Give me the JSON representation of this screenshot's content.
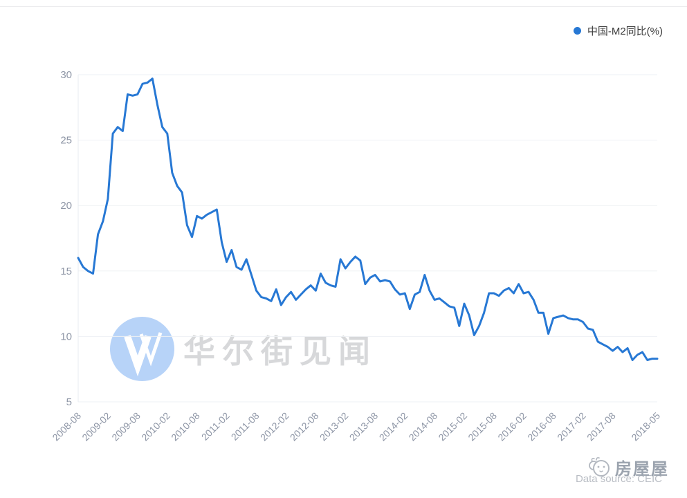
{
  "legend": {
    "label": "中国-M2同比(%)"
  },
  "watermark": {
    "logo_letter": "W",
    "text": "华尔街见闻"
  },
  "footer": {
    "data_source": "Data source: CEIC",
    "brand": "房屋屋"
  },
  "chart_data": {
    "type": "line",
    "title": "",
    "series_name": "中国-M2同比(%)",
    "legend_position": "top-right",
    "grid": true,
    "ylim": [
      5,
      30
    ],
    "y_ticks": [
      30,
      25,
      20,
      15,
      10,
      5
    ],
    "x_tick_labels": [
      "2008-08",
      "2009-02",
      "2009-08",
      "2010-02",
      "2010-08",
      "2011-02",
      "2011-08",
      "2012-02",
      "2012-08",
      "2013-02",
      "2013-08",
      "2014-02",
      "2014-08",
      "2015-02",
      "2015-08",
      "2016-02",
      "2016-08",
      "2017-02",
      "2017-08",
      "2018-05"
    ],
    "x": [
      "2008-08",
      "2008-09",
      "2008-10",
      "2008-11",
      "2008-12",
      "2009-01",
      "2009-02",
      "2009-03",
      "2009-04",
      "2009-05",
      "2009-06",
      "2009-07",
      "2009-08",
      "2009-09",
      "2009-10",
      "2009-11",
      "2009-12",
      "2010-01",
      "2010-02",
      "2010-03",
      "2010-04",
      "2010-05",
      "2010-06",
      "2010-07",
      "2010-08",
      "2010-09",
      "2010-10",
      "2010-11",
      "2010-12",
      "2011-01",
      "2011-02",
      "2011-03",
      "2011-04",
      "2011-05",
      "2011-06",
      "2011-07",
      "2011-08",
      "2011-09",
      "2011-10",
      "2011-11",
      "2011-12",
      "2012-01",
      "2012-02",
      "2012-03",
      "2012-04",
      "2012-05",
      "2012-06",
      "2012-07",
      "2012-08",
      "2012-09",
      "2012-10",
      "2012-11",
      "2012-12",
      "2013-01",
      "2013-02",
      "2013-03",
      "2013-04",
      "2013-05",
      "2013-06",
      "2013-07",
      "2013-08",
      "2013-09",
      "2013-10",
      "2013-11",
      "2013-12",
      "2014-01",
      "2014-02",
      "2014-03",
      "2014-04",
      "2014-05",
      "2014-06",
      "2014-07",
      "2014-08",
      "2014-09",
      "2014-10",
      "2014-11",
      "2014-12",
      "2015-01",
      "2015-02",
      "2015-03",
      "2015-04",
      "2015-05",
      "2015-06",
      "2015-07",
      "2015-08",
      "2015-09",
      "2015-10",
      "2015-11",
      "2015-12",
      "2016-01",
      "2016-02",
      "2016-03",
      "2016-04",
      "2016-05",
      "2016-06",
      "2016-07",
      "2016-08",
      "2016-09",
      "2016-10",
      "2016-11",
      "2016-12",
      "2017-01",
      "2017-02",
      "2017-03",
      "2017-04",
      "2017-05",
      "2017-06",
      "2017-07",
      "2017-08",
      "2017-09",
      "2017-10",
      "2017-11",
      "2017-12",
      "2018-01",
      "2018-02",
      "2018-03",
      "2018-04",
      "2018-05"
    ],
    "values": [
      16.0,
      15.3,
      15.0,
      14.8,
      17.8,
      18.8,
      20.5,
      25.5,
      26.0,
      25.7,
      28.5,
      28.4,
      28.5,
      29.3,
      29.4,
      29.7,
      27.7,
      26.0,
      25.5,
      22.5,
      21.5,
      21.0,
      18.5,
      17.6,
      19.2,
      19.0,
      19.3,
      19.5,
      19.7,
      17.2,
      15.7,
      16.6,
      15.3,
      15.1,
      15.9,
      14.7,
      13.5,
      13.0,
      12.9,
      12.7,
      13.6,
      12.4,
      13.0,
      13.4,
      12.8,
      13.2,
      13.6,
      13.9,
      13.5,
      14.8,
      14.1,
      13.9,
      13.8,
      15.9,
      15.2,
      15.7,
      16.1,
      15.8,
      14.0,
      14.5,
      14.7,
      14.2,
      14.3,
      14.2,
      13.6,
      13.2,
      13.3,
      12.1,
      13.2,
      13.4,
      14.7,
      13.5,
      12.8,
      12.9,
      12.6,
      12.3,
      12.2,
      10.8,
      12.5,
      11.6,
      10.1,
      10.8,
      11.8,
      13.3,
      13.3,
      13.1,
      13.5,
      13.7,
      13.3,
      14.0,
      13.3,
      13.4,
      12.8,
      11.8,
      11.8,
      10.2,
      11.4,
      11.5,
      11.6,
      11.4,
      11.3,
      11.3,
      11.1,
      10.6,
      10.5,
      9.6,
      9.4,
      9.2,
      8.9,
      9.2,
      8.8,
      9.1,
      8.2,
      8.6,
      8.8,
      8.2,
      8.3,
      8.3
    ],
    "xlabel": "",
    "ylabel": "",
    "line_color": "#2778d4",
    "label_color": "#8e96a6",
    "grid_color": "#eef1f4",
    "axis_line_color": "#e7ebf0"
  }
}
